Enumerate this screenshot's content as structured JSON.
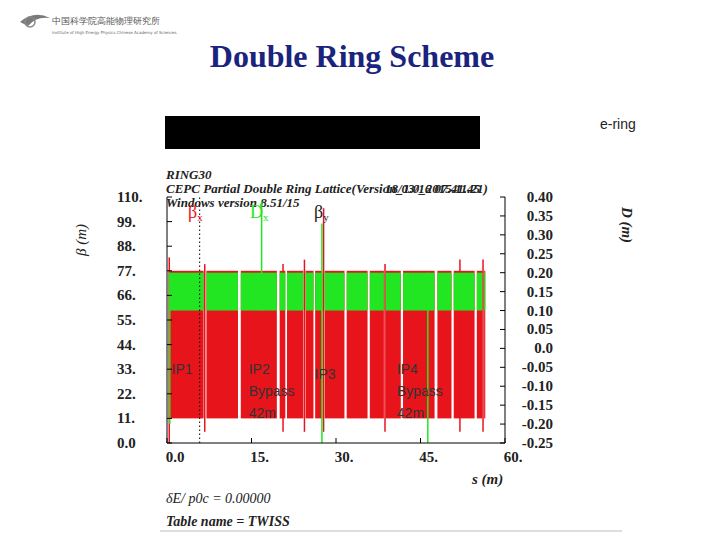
{
  "header": {
    "title": "Double Ring Scheme",
    "label": "e-ring",
    "logo_cn": "中国科学院高能物理研究所",
    "logo_en": "Institute of High Energy Physics Chinese Academy of Sciences"
  },
  "chart_data": {
    "type": "band",
    "plot_header": [
      "RING30",
      "CEPC Partial Double Ring Lattice(Version_1.0_2015.11.21)",
      "Windows version 8.51/15"
    ],
    "timestamp": "18/03/16  07.41.45",
    "x_label": "s (m)",
    "y_label": "β (m)",
    "y2_label": "D (m)",
    "footer": [
      "δE/ p0c  =   0.00000",
      "Table name = TWISS"
    ],
    "xlim": [
      0,
      60
    ],
    "xticks": [
      {
        "value": 0,
        "label": "0.0"
      },
      {
        "value": 15,
        "label": "15."
      },
      {
        "value": 30,
        "label": "30."
      },
      {
        "value": 45,
        "label": "45."
      },
      {
        "value": 60,
        "label": "60."
      }
    ],
    "ylim": [
      0,
      110
    ],
    "yticks": [
      {
        "value": 0,
        "label": "0.0"
      },
      {
        "value": 11,
        "label": "11."
      },
      {
        "value": 22,
        "label": "22."
      },
      {
        "value": 33,
        "label": "33."
      },
      {
        "value": 44,
        "label": "44."
      },
      {
        "value": 55,
        "label": "55."
      },
      {
        "value": 66,
        "label": "66."
      },
      {
        "value": 77,
        "label": "77."
      },
      {
        "value": 88,
        "label": "88."
      },
      {
        "value": 99,
        "label": "99."
      },
      {
        "value": 110,
        "label": "110."
      }
    ],
    "y2lim": [
      -0.25,
      0.4
    ],
    "y2ticks": [
      {
        "value": 0.4,
        "label": "0.40"
      },
      {
        "value": 0.35,
        "label": "0.35"
      },
      {
        "value": 0.3,
        "label": "0.30"
      },
      {
        "value": 0.25,
        "label": "0.25"
      },
      {
        "value": 0.2,
        "label": "0.20"
      },
      {
        "value": 0.15,
        "label": "0.15"
      },
      {
        "value": 0.1,
        "label": "0.10"
      },
      {
        "value": 0.05,
        "label": "0.05"
      },
      {
        "value": 0,
        "label": "0.0"
      },
      {
        "value": -0.05,
        "label": "-0.05"
      },
      {
        "value": -0.1,
        "label": "-0.10"
      },
      {
        "value": -0.15,
        "label": "-0.15"
      },
      {
        "value": -0.2,
        "label": "-0.20"
      },
      {
        "value": -0.25,
        "label": "-0.25"
      }
    ],
    "series": [
      {
        "name": "βx",
        "color": "#e8141b",
        "bins": [
          0.3,
          6.5,
          7.0,
          12.6,
          13.1,
          19.5,
          20.0,
          21.0,
          21.3,
          24.2,
          24.6,
          26.0,
          26.3,
          27.6,
          28.0,
          31.5,
          31.9,
          35.6,
          36.0,
          38.5,
          38.8,
          41.5,
          41.9,
          47.5,
          48.0,
          50.5,
          50.9,
          54.6,
          55.0,
          56.0,
          56.3,
          56.5
        ],
        "lower": [
          11,
          null,
          11,
          null,
          11,
          null,
          11,
          null,
          11,
          null,
          11,
          null,
          11,
          null,
          11,
          null,
          11,
          null,
          11,
          null,
          11,
          null,
          11,
          null,
          11,
          null,
          11,
          null,
          11,
          null,
          11
        ],
        "upper": [
          77,
          null,
          77,
          null,
          77,
          null,
          77,
          null,
          77,
          null,
          77,
          null,
          77,
          null,
          77,
          null,
          77,
          null,
          77,
          null,
          77,
          null,
          77,
          null,
          77,
          null,
          77,
          null,
          77,
          null,
          77
        ],
        "spikes": {
          "x": [
            0.4,
            6.7,
            20.6,
            24.4,
            27.8,
            38.7,
            52.0,
            56.1
          ],
          "low": [
            0,
            5,
            5,
            5,
            5,
            5,
            5,
            5
          ],
          "high": [
            83,
            80,
            80,
            82,
            105,
            80,
            82,
            82
          ]
        }
      },
      {
        "name": "Dx",
        "color": "#22e622",
        "axis": "y2",
        "bins": [
          0.3,
          6.5,
          7.0,
          12.6,
          13.1,
          19.5,
          20.0,
          21.0,
          21.3,
          24.2,
          24.6,
          26.0,
          26.3,
          27.6,
          28.0,
          31.5,
          31.9,
          35.6,
          36.0,
          38.5,
          38.8,
          41.5,
          41.9,
          47.5,
          48.0,
          50.5,
          50.9,
          54.6,
          55.0,
          56.0,
          56.3,
          56.5
        ],
        "lower": [
          0.1,
          null,
          0.1,
          null,
          0.1,
          null,
          0.1,
          null,
          0.1,
          null,
          0.1,
          null,
          0.1,
          null,
          0.1,
          null,
          0.1,
          null,
          0.1,
          null,
          0.1,
          null,
          0.1,
          null,
          0.1,
          null,
          0.1,
          null,
          0.1,
          null,
          0.1
        ],
        "upper": [
          0.2,
          null,
          0.2,
          null,
          0.2,
          null,
          0.2,
          null,
          0.2,
          null,
          0.2,
          null,
          0.2,
          null,
          0.2,
          null,
          0.2,
          null,
          0.2,
          null,
          0.2,
          null,
          0.2,
          null,
          0.2,
          null,
          0.2,
          null,
          0.2,
          null,
          0.2
        ],
        "spikes": {
          "x": [
            0.5,
            16.8,
            27.5,
            46.3
          ],
          "low": [
            -0.2,
            0.1,
            -0.25,
            -0.25
          ],
          "high": [
            0.2,
            0.39,
            0.33,
            0.2
          ]
        }
      },
      {
        "name": "βy",
        "color": "#000000",
        "line_style": "dotted",
        "spikes": {
          "x": [
            5.8
          ],
          "low": [
            0
          ],
          "high": [
            110
          ]
        }
      }
    ],
    "annotations": [
      {
        "lines": [
          "IP1"
        ],
        "x": 0.8,
        "y": 33
      },
      {
        "lines": [
          "IP2",
          "Bypass",
          "42m"
        ],
        "x": 14.5,
        "y": 33
      },
      {
        "lines": [
          "IP3"
        ],
        "x": 26.2,
        "y": 31
      },
      {
        "lines": [
          "IP4",
          "Bypass",
          "42m"
        ],
        "x": 40.8,
        "y": 33
      }
    ]
  }
}
